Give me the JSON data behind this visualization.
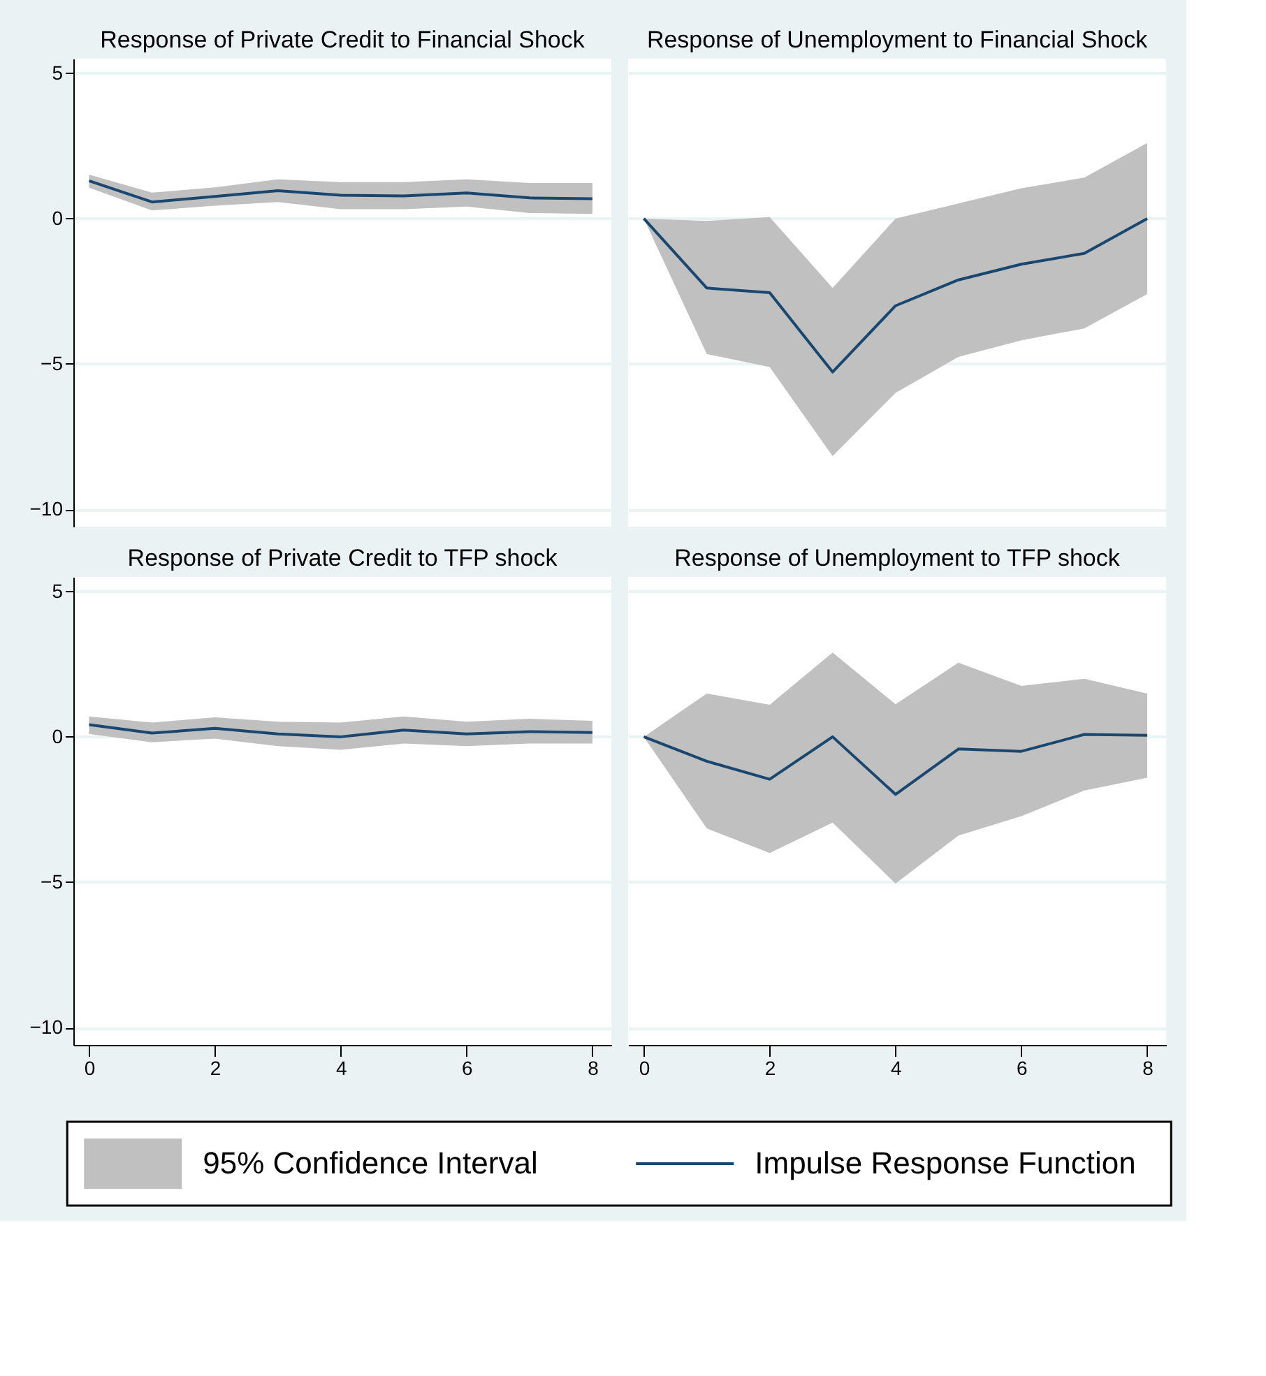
{
  "chart_data": [
    {
      "type": "line",
      "title": "Response of Private Credit to Financial Shock",
      "x": [
        0,
        1,
        2,
        3,
        4,
        5,
        6,
        7,
        8
      ],
      "xlim": [
        -0.25,
        8.3
      ],
      "xticks": [
        0,
        2,
        4,
        6,
        8
      ],
      "ylim": [
        -10.6,
        5.5
      ],
      "yticks": [
        -10,
        -5,
        0,
        5
      ],
      "grid": "y",
      "tick_labels": "y",
      "legend": "bottom",
      "series": [
        {
          "name": "95% Confidence Interval",
          "type": "area",
          "color": "#c0c0c0",
          "values": [
            null,
            null,
            null,
            null,
            null,
            null,
            null,
            null,
            null
          ],
          "lower": [
            1.06,
            0.28,
            0.44,
            0.57,
            0.32,
            0.32,
            0.41,
            0.19,
            0.16
          ],
          "upper": [
            1.51,
            0.89,
            1.07,
            1.35,
            1.25,
            1.25,
            1.35,
            1.22,
            1.22
          ]
        },
        {
          "name": "Impulse Response Function",
          "color": "#1a476f",
          "values": [
            1.3,
            0.57,
            0.76,
            0.96,
            0.8,
            0.78,
            0.88,
            0.71,
            0.68
          ]
        }
      ]
    },
    {
      "type": "line",
      "title": "Response of Unemployment to Financial Shock",
      "x": [
        0,
        1,
        2,
        3,
        4,
        5,
        6,
        7,
        8
      ],
      "xlim": [
        -0.25,
        8.3
      ],
      "xticks": [
        0,
        2,
        4,
        6,
        8
      ],
      "ylim": [
        -10.6,
        5.5
      ],
      "yticks": [
        -10,
        -5,
        0,
        5
      ],
      "grid": "y",
      "tick_labels": false,
      "series": [
        {
          "type": "area",
          "color": "#c0c0c0",
          "values": [
            null,
            null,
            null,
            null,
            null,
            null,
            null,
            null,
            null
          ],
          "lower": [
            0,
            -4.66,
            -5.11,
            -8.17,
            -6.0,
            -4.76,
            -4.19,
            -3.78,
            -2.6
          ],
          "upper": [
            0,
            -0.08,
            0.05,
            -2.39,
            0,
            0.52,
            1.04,
            1.41,
            2.6
          ]
        },
        {
          "color": "#1a476f",
          "values": [
            0,
            -2.39,
            -2.55,
            -5.28,
            -3.0,
            -2.11,
            -1.57,
            -1.2,
            0
          ]
        }
      ]
    },
    {
      "type": "line",
      "title": "Response of Private Credit to TFP shock",
      "x": [
        0,
        1,
        2,
        3,
        4,
        5,
        6,
        7,
        8
      ],
      "xlim": [
        -0.25,
        8.3
      ],
      "xticks": [
        0,
        2,
        4,
        6,
        8
      ],
      "ylim": [
        -10.6,
        5.5
      ],
      "yticks": [
        -10,
        -5,
        0,
        5
      ],
      "grid": "y",
      "series": [
        {
          "type": "area",
          "color": "#c0c0c0",
          "values": [
            null,
            null,
            null,
            null,
            null,
            null,
            null,
            null,
            null
          ],
          "lower": [
            0.1,
            -0.19,
            -0.06,
            -0.32,
            -0.45,
            -0.23,
            -0.32,
            -0.23,
            -0.23
          ],
          "upper": [
            0.7,
            0.49,
            0.67,
            0.52,
            0.49,
            0.7,
            0.52,
            0.62,
            0.55
          ]
        },
        {
          "color": "#1a476f",
          "values": [
            0.42,
            0.13,
            0.29,
            0.1,
            0,
            0.23,
            0.1,
            0.18,
            0.15
          ]
        }
      ]
    },
    {
      "type": "line",
      "title": "Response of Unemployment to TFP shock",
      "x": [
        0,
        1,
        2,
        3,
        4,
        5,
        6,
        7,
        8
      ],
      "xlim": [
        -0.25,
        8.3
      ],
      "xticks": [
        0,
        2,
        4,
        6,
        8
      ],
      "ylim": [
        -10.6,
        5.5
      ],
      "yticks": [
        -10,
        -5,
        0,
        5
      ],
      "grid": "y",
      "tick_labels": "x",
      "series": [
        {
          "type": "area",
          "color": "#c0c0c0",
          "values": [
            null,
            null,
            null,
            null,
            null,
            null,
            null,
            null,
            null
          ],
          "lower": [
            0,
            -3.15,
            -4.0,
            -2.95,
            -5.05,
            -3.4,
            -2.73,
            -1.85,
            -1.41
          ],
          "upper": [
            0,
            1.49,
            1.1,
            2.9,
            1.12,
            2.55,
            1.75,
            2.0,
            1.49
          ]
        },
        {
          "color": "#1a476f",
          "values": [
            0,
            -0.84,
            -1.46,
            0,
            -1.98,
            -0.42,
            -0.5,
            0.08,
            0.05
          ]
        }
      ]
    }
  ]
}
